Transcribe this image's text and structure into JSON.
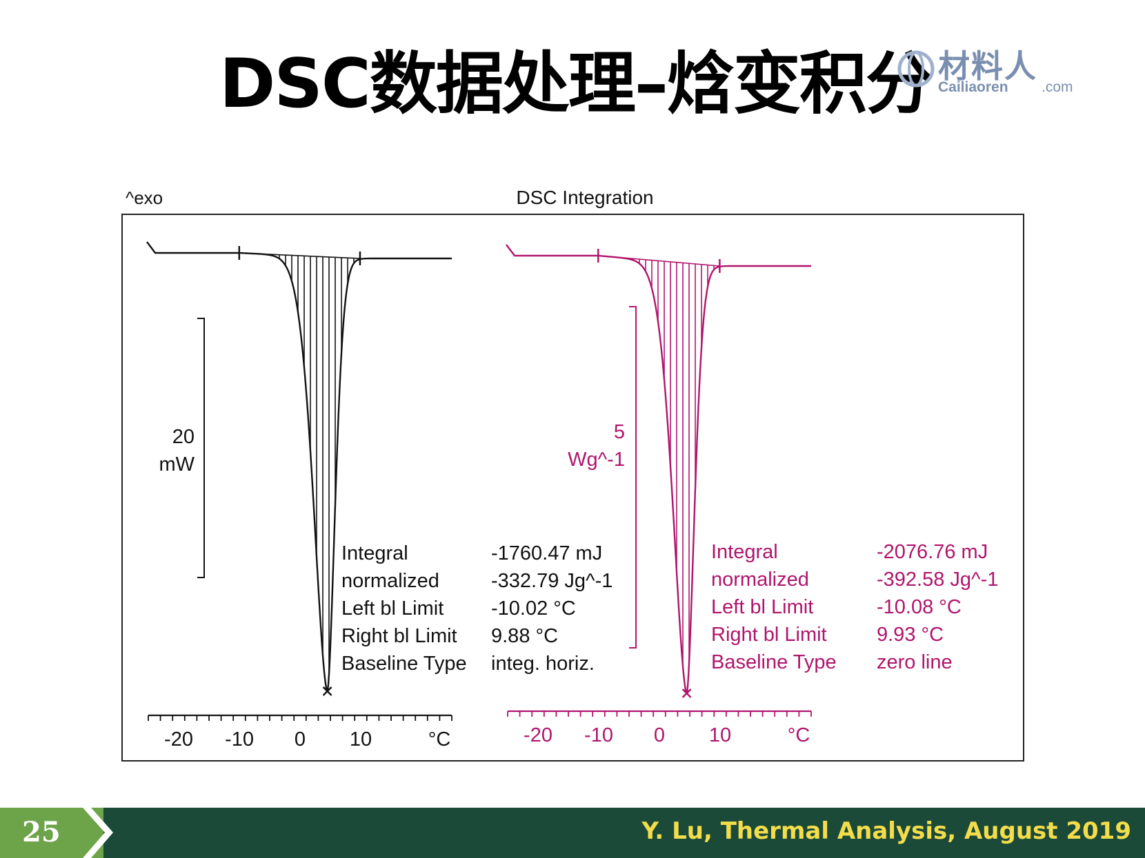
{
  "slide": {
    "title": "DSC数据处理–焓变积分",
    "page_number": "25",
    "footer": "Y. Lu, Thermal Analysis, August 2019"
  },
  "logo": {
    "main": "材料人",
    "sub": "Cailiaoren",
    "com": ".com"
  },
  "colors": {
    "footer_bg": "#1c4a38",
    "page_badge": "#6da349",
    "footer_text": "#f3dd4a",
    "left_curve": "#111111",
    "right_curve": "#b0146c"
  },
  "chart_data": {
    "type": "line",
    "title": "DSC Integration",
    "exo_label": "^exo",
    "panels": [
      {
        "color": "#111111",
        "scale_value": "20",
        "scale_unit": "mW",
        "xlabel": "°C",
        "x_ticks": [
          "-20",
          "-10",
          "0",
          "10"
        ],
        "xlim": [
          -25,
          25
        ],
        "integration_limits": [
          -10.02,
          9.88
        ],
        "peak_x": 4.5,
        "results": [
          {
            "label": "Integral",
            "value": "-1760.47 mJ"
          },
          {
            "label": " normalized",
            "value": "-332.79 Jg^-1"
          },
          {
            "label": "Left bl Limit",
            "value": "-10.02 °C"
          },
          {
            "label": "Right bl Limit",
            "value": "9.88 °C"
          },
          {
            "label": "Baseline Type",
            "value": "integ. horiz."
          }
        ]
      },
      {
        "color": "#b0146c",
        "scale_value": "5",
        "scale_unit": "Wg^-1",
        "xlabel": "°C",
        "x_ticks": [
          "-20",
          "-10",
          "0",
          "10"
        ],
        "xlim": [
          -25,
          25
        ],
        "integration_limits": [
          -10.08,
          9.93
        ],
        "peak_x": 4.5,
        "results": [
          {
            "label": "Integral",
            "value": "-2076.76 mJ"
          },
          {
            "label": " normalized",
            "value": "-392.58 Jg^-1"
          },
          {
            "label": "Left bl Limit",
            "value": "-10.08 °C"
          },
          {
            "label": "Right bl Limit",
            "value": "9.93 °C"
          },
          {
            "label": "Baseline Type",
            "value": "zero line"
          }
        ]
      }
    ]
  }
}
